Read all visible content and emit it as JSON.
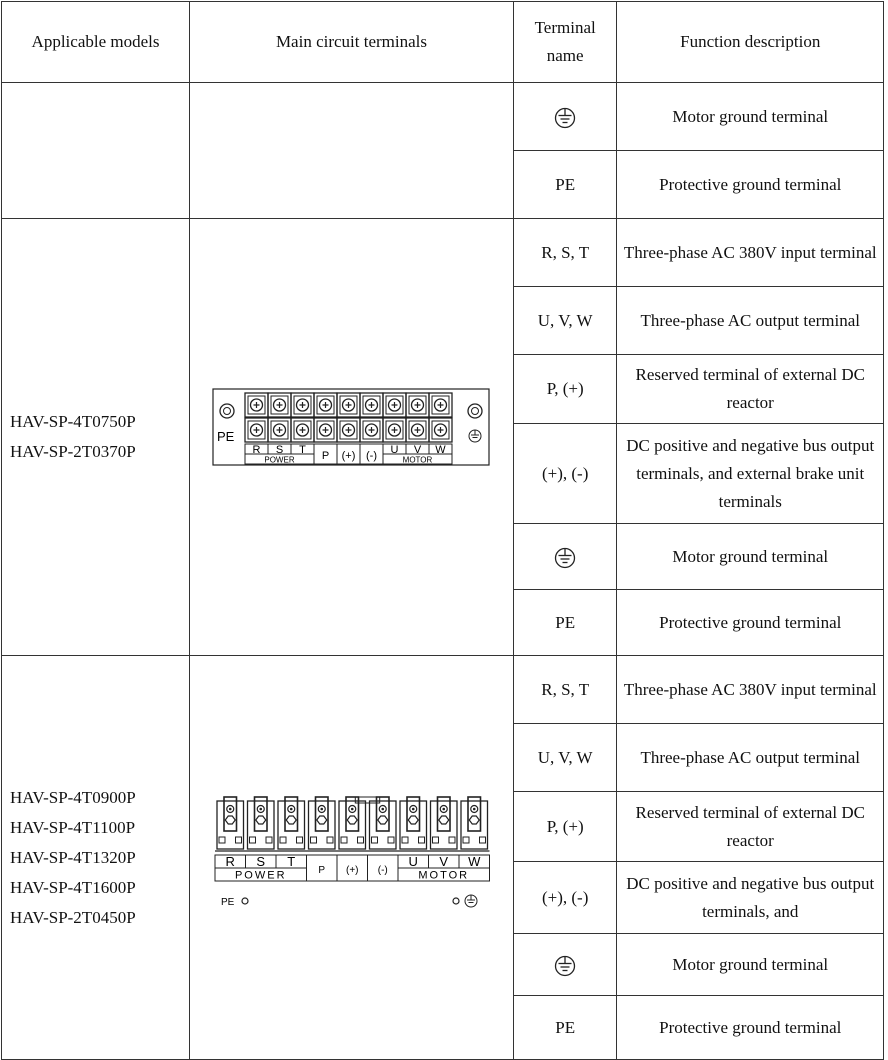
{
  "table": {
    "headers": [
      "Applicable models",
      "Main circuit terminals",
      "Terminal name",
      "Function description"
    ]
  },
  "icons": {
    "ground_symbol": "protective-earth-icon"
  },
  "group1": {
    "rows": [
      {
        "name": "",
        "icon": "ground",
        "desc": "Motor ground terminal"
      },
      {
        "name": "PE",
        "desc": "Protective ground terminal"
      }
    ]
  },
  "group2": {
    "models": [
      "HAV-SP-4T0750P",
      "HAV-SP-2T0370P"
    ],
    "diagram": {
      "pe_label": "PE",
      "labels": [
        "R",
        "S",
        "T",
        "P",
        "(+)",
        "(-)",
        "U",
        "V",
        "W"
      ],
      "power_label": "POWER",
      "motor_label": "MOTOR"
    },
    "rows": [
      {
        "name": "R, S, T",
        "desc": "Three-phase AC 380V input terminal"
      },
      {
        "name": "U, V, W",
        "desc": "Three-phase AC output terminal"
      },
      {
        "name": "P, (+)",
        "desc": "Reserved terminal of external DC reactor"
      },
      {
        "name": "(+), (-)",
        "desc": "DC positive and negative bus output terminals, and external brake unit terminals"
      },
      {
        "name": "",
        "icon": "ground",
        "desc": "Motor ground terminal"
      },
      {
        "name": "PE",
        "desc": "Protective ground terminal"
      }
    ]
  },
  "group3": {
    "models": [
      "HAV-SP-4T0900P",
      "HAV-SP-4T1100P",
      "HAV-SP-4T1320P",
      "HAV-SP-4T1600P",
      "HAV-SP-2T0450P"
    ],
    "diagram": {
      "pe_label": "PE",
      "labels": [
        "R",
        "S",
        "T",
        "P",
        "(+)",
        "(-)",
        "U",
        "V",
        "W"
      ],
      "power_label": "POWER",
      "motor_label": "MOTOR"
    },
    "rows": [
      {
        "name": "R, S, T",
        "desc": "Three-phase AC 380V input terminal"
      },
      {
        "name": "U, V, W",
        "desc": "Three-phase AC output terminal"
      },
      {
        "name": "P, (+)",
        "desc": "Reserved terminal of external DC reactor"
      },
      {
        "name": "(+), (-)",
        "desc": "DC positive and negative bus output terminals, and"
      },
      {
        "name": "",
        "icon": "ground",
        "desc": "Motor ground terminal"
      },
      {
        "name": "PE",
        "desc": "Protective ground terminal"
      }
    ]
  }
}
